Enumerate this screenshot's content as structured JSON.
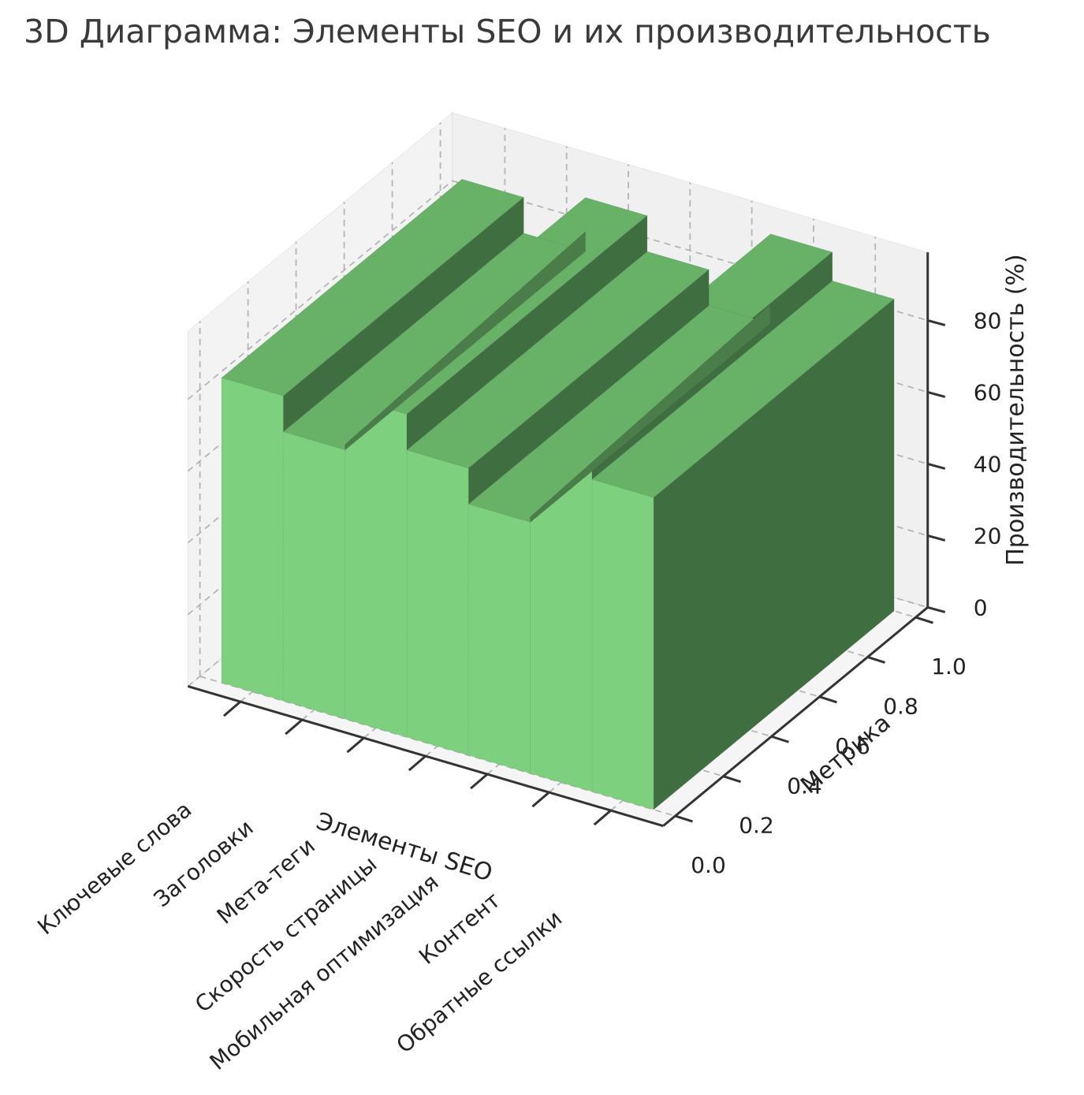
{
  "title": "3D Диаграмма: Элементы SEO и их производительность",
  "chart_data": {
    "type": "bar",
    "variant": "3d-bar",
    "title": "3D Диаграмма: Элементы SEO и их производительность",
    "categories": [
      "Ключевые слова",
      "Заголовки",
      "Мета-теги",
      "Скорость страницы",
      "Мобильная оптимизация",
      "Контент",
      "Обратные ссылки"
    ],
    "values": [
      85,
      75,
      90,
      80,
      70,
      95,
      87
    ],
    "xlabel": "Элементы SEO",
    "ylabel": "Метрика",
    "zlabel": "Производительность (%)",
    "y_tick_labels": [
      "0.0",
      "0.2",
      "0.4",
      "0.6",
      "0.8",
      "1.0"
    ],
    "y_tick_values": [
      0,
      0.2,
      0.4,
      0.6,
      0.8,
      1.0
    ],
    "z_tick_labels": [
      "0",
      "20",
      "40",
      "60",
      "80"
    ],
    "z_tick_values": [
      0,
      20,
      40,
      60,
      80
    ],
    "zlim": [
      0,
      99
    ],
    "grid": true,
    "legend": "none",
    "colors": {
      "bar_front": "#7dd07d",
      "bar_top": "#68b268",
      "bar_side": "#3f6f40",
      "bar_inner": "#4a7d4a",
      "pane_left": "#f3f3f3",
      "pane_right": "#f0f0f0",
      "pane_floor": "#f5f5f5",
      "grid": "#b5b5b5",
      "spine": "#333333",
      "text": "#222222",
      "title": "#3a3a3a"
    }
  }
}
